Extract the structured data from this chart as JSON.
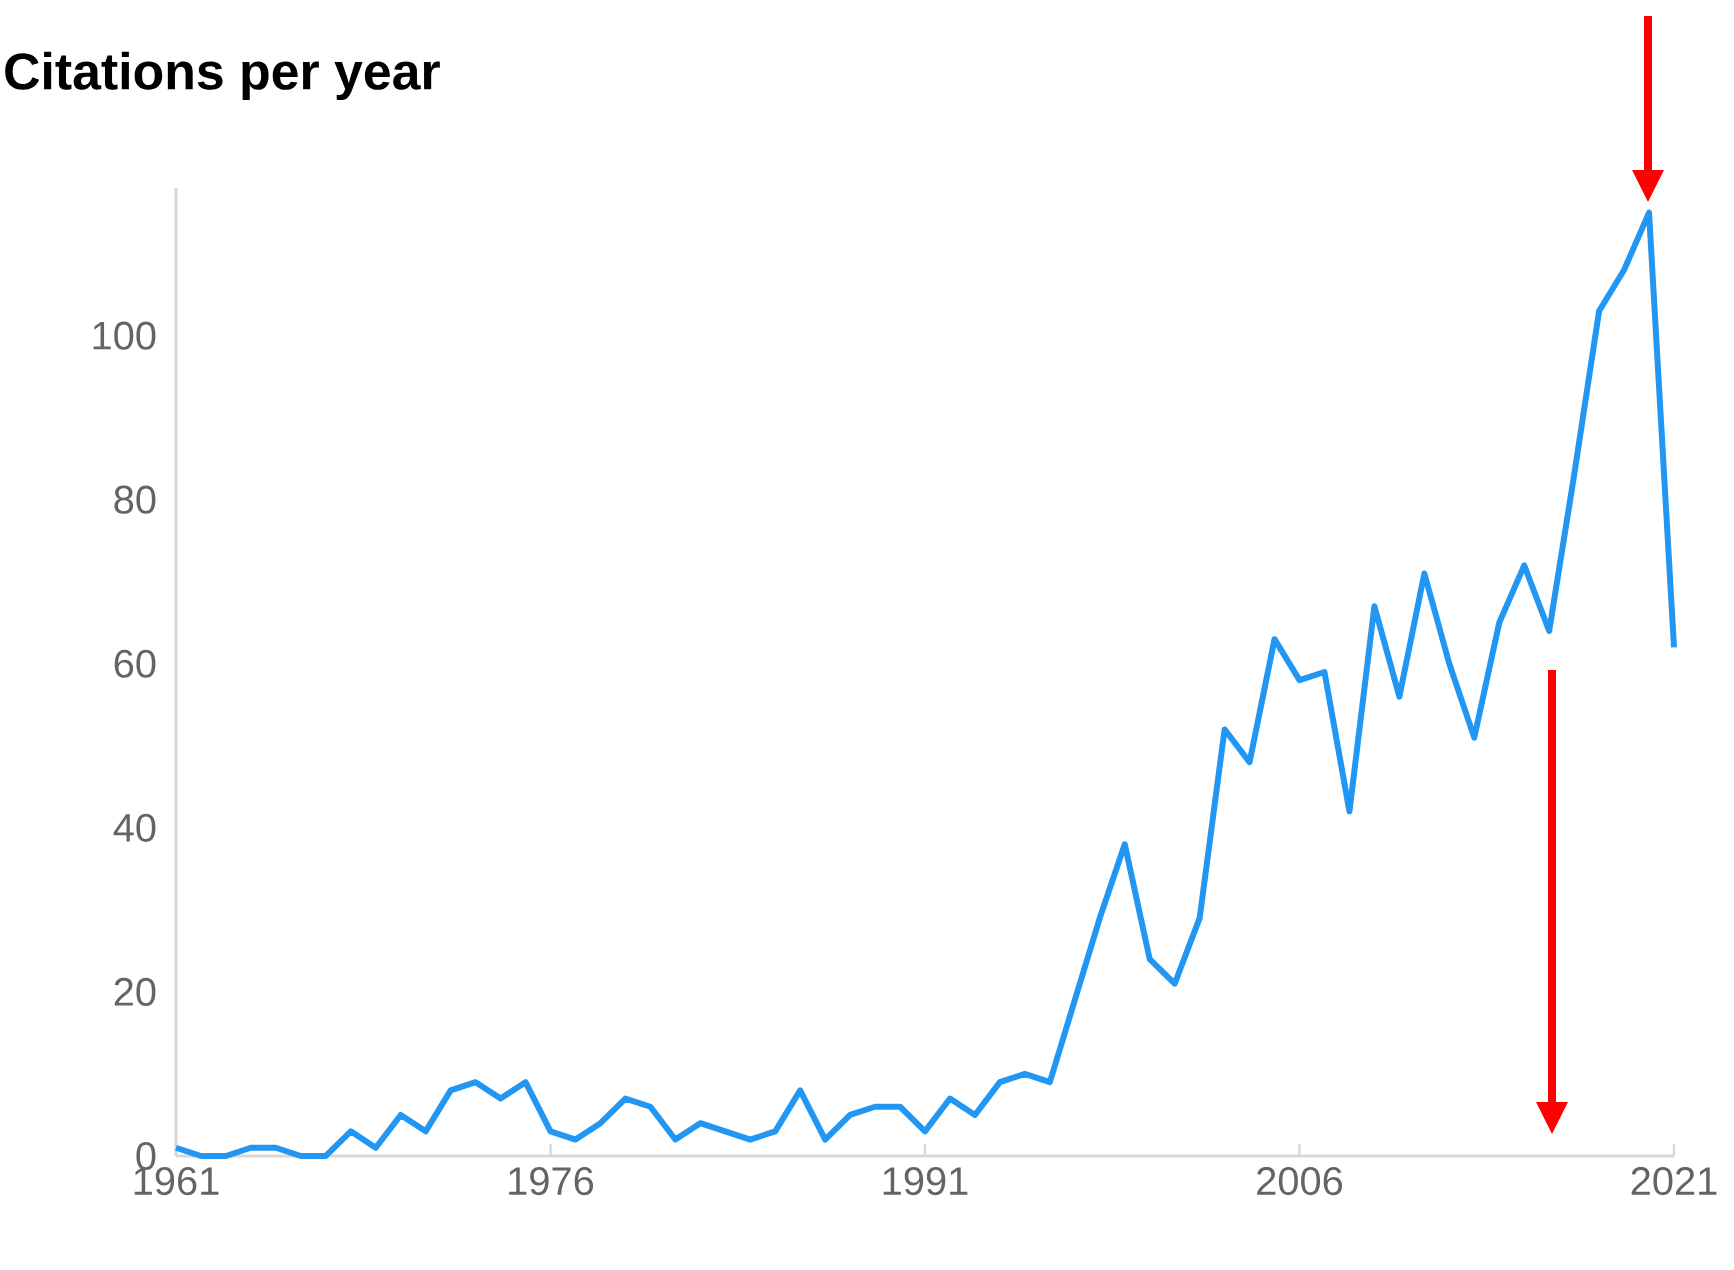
{
  "chart_data": {
    "type": "line",
    "title": "Citations per year",
    "x": [
      1961,
      1962,
      1963,
      1964,
      1965,
      1966,
      1967,
      1968,
      1969,
      1970,
      1971,
      1972,
      1973,
      1974,
      1975,
      1976,
      1977,
      1978,
      1979,
      1980,
      1981,
      1982,
      1983,
      1984,
      1985,
      1986,
      1987,
      1988,
      1989,
      1990,
      1991,
      1992,
      1993,
      1994,
      1995,
      1996,
      1997,
      1998,
      1999,
      2000,
      2001,
      2002,
      2003,
      2004,
      2005,
      2006,
      2007,
      2008,
      2009,
      2010,
      2011,
      2012,
      2013,
      2014,
      2015,
      2016,
      2017,
      2018,
      2019,
      2020,
      2021
    ],
    "series": [
      {
        "color": "#2196f3",
        "values": [
          1,
          0,
          0,
          1,
          1,
          0,
          0,
          3,
          1,
          5,
          3,
          8,
          9,
          7,
          9,
          3,
          2,
          4,
          7,
          6,
          2,
          4,
          3,
          2,
          3,
          8,
          2,
          5,
          6,
          6,
          3,
          7,
          5,
          9,
          10,
          9,
          19,
          29,
          38,
          24,
          21,
          29,
          52,
          48,
          63,
          58,
          59,
          42,
          67,
          56,
          71,
          60,
          51,
          65,
          72,
          64,
          83,
          103,
          108,
          115,
          62
        ]
      }
    ],
    "xlim": [
      1961,
      2021
    ],
    "xticks": [
      1961,
      1976,
      1991,
      2006,
      2021
    ],
    "ylim": [
      0,
      118
    ],
    "yticks": [
      0,
      20,
      40,
      60,
      80,
      100
    ],
    "marker": "none",
    "line_style": "solid"
  }
}
